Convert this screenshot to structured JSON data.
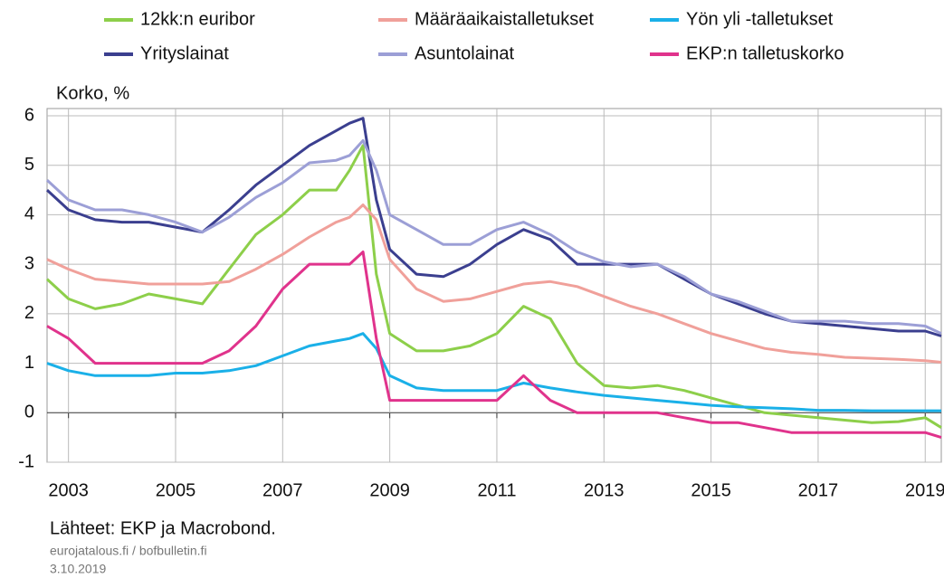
{
  "chart_data": {
    "type": "line",
    "y_label": "Korko, %",
    "source": "Lähteet: EKP ja Macrobond.",
    "footer": "eurojatalous.fi / bofbulletin.fi",
    "date": "3.10.2019",
    "xlim": [
      2002.6,
      2019.3
    ],
    "xticks": [
      2003,
      2005,
      2007,
      2009,
      2011,
      2013,
      2015,
      2017,
      2019
    ],
    "ylim": [
      -1,
      6
    ],
    "yticks": [
      -1,
      0,
      1,
      2,
      3,
      4,
      5,
      6
    ],
    "grid": true,
    "x": [
      2002.6,
      2003,
      2003.5,
      2004,
      2004.5,
      2005,
      2005.5,
      2006,
      2006.5,
      2007,
      2007.5,
      2008,
      2008.25,
      2008.5,
      2008.75,
      2009,
      2009.5,
      2010,
      2010.5,
      2011,
      2011.5,
      2012,
      2012.5,
      2013,
      2013.5,
      2014,
      2014.5,
      2015,
      2015.5,
      2016,
      2016.5,
      2017,
      2017.5,
      2018,
      2018.5,
      2019,
      2019.3
    ],
    "series": [
      {
        "name": "12kk:n euribor",
        "color": "#8dcf4a",
        "values": [
          2.7,
          2.3,
          2.1,
          2.2,
          2.4,
          2.3,
          2.2,
          2.9,
          3.6,
          4.0,
          4.5,
          4.5,
          4.9,
          5.4,
          2.8,
          1.6,
          1.25,
          1.25,
          1.35,
          1.6,
          2.15,
          1.9,
          1.0,
          0.55,
          0.5,
          0.55,
          0.45,
          0.3,
          0.15,
          0.0,
          -0.05,
          -0.1,
          -0.15,
          -0.2,
          -0.18,
          -0.1,
          -0.3
        ]
      },
      {
        "name": "Määräaikaistalletukset",
        "color": "#f0a09a",
        "values": [
          3.1,
          2.9,
          2.7,
          2.65,
          2.6,
          2.6,
          2.6,
          2.65,
          2.9,
          3.2,
          3.55,
          3.85,
          3.95,
          4.2,
          3.9,
          3.1,
          2.5,
          2.25,
          2.3,
          2.45,
          2.6,
          2.65,
          2.55,
          2.35,
          2.15,
          2.0,
          1.8,
          1.6,
          1.45,
          1.3,
          1.22,
          1.18,
          1.12,
          1.1,
          1.08,
          1.05,
          1.02
        ]
      },
      {
        "name": "Yön yli -talletukset",
        "color": "#1ab0e8",
        "values": [
          1.0,
          0.85,
          0.75,
          0.75,
          0.75,
          0.8,
          0.8,
          0.85,
          0.95,
          1.15,
          1.35,
          1.45,
          1.5,
          1.6,
          1.3,
          0.75,
          0.5,
          0.45,
          0.45,
          0.45,
          0.6,
          0.5,
          0.42,
          0.35,
          0.3,
          0.25,
          0.2,
          0.15,
          0.12,
          0.1,
          0.08,
          0.05,
          0.05,
          0.04,
          0.04,
          0.04,
          0.04
        ]
      },
      {
        "name": "Yrityslainat",
        "color": "#3b3f8f",
        "values": [
          4.5,
          4.1,
          3.9,
          3.85,
          3.85,
          3.75,
          3.65,
          4.1,
          4.6,
          5.0,
          5.4,
          5.7,
          5.85,
          5.95,
          4.3,
          3.3,
          2.8,
          2.75,
          3.0,
          3.4,
          3.7,
          3.5,
          3.0,
          3.0,
          3.0,
          3.0,
          2.7,
          2.4,
          2.2,
          2.0,
          1.85,
          1.8,
          1.75,
          1.7,
          1.65,
          1.65,
          1.55
        ]
      },
      {
        "name": "Asuntolainat",
        "color": "#9c9fd6",
        "values": [
          4.7,
          4.3,
          4.1,
          4.1,
          4.0,
          3.85,
          3.65,
          3.95,
          4.35,
          4.65,
          5.05,
          5.1,
          5.2,
          5.5,
          4.9,
          4.0,
          3.7,
          3.4,
          3.4,
          3.7,
          3.85,
          3.6,
          3.25,
          3.05,
          2.95,
          3.0,
          2.75,
          2.4,
          2.25,
          2.05,
          1.85,
          1.85,
          1.85,
          1.8,
          1.8,
          1.75,
          1.6
        ]
      },
      {
        "name": "EKP:n talletuskorko",
        "color": "#e0338c",
        "values": [
          1.75,
          1.5,
          1.0,
          1.0,
          1.0,
          1.0,
          1.0,
          1.25,
          1.75,
          2.5,
          3.0,
          3.0,
          3.0,
          3.25,
          1.5,
          0.25,
          0.25,
          0.25,
          0.25,
          0.25,
          0.75,
          0.25,
          0.0,
          0.0,
          0.0,
          0.0,
          -0.1,
          -0.2,
          -0.2,
          -0.3,
          -0.4,
          -0.4,
          -0.4,
          -0.4,
          -0.4,
          -0.4,
          -0.5
        ]
      }
    ]
  }
}
